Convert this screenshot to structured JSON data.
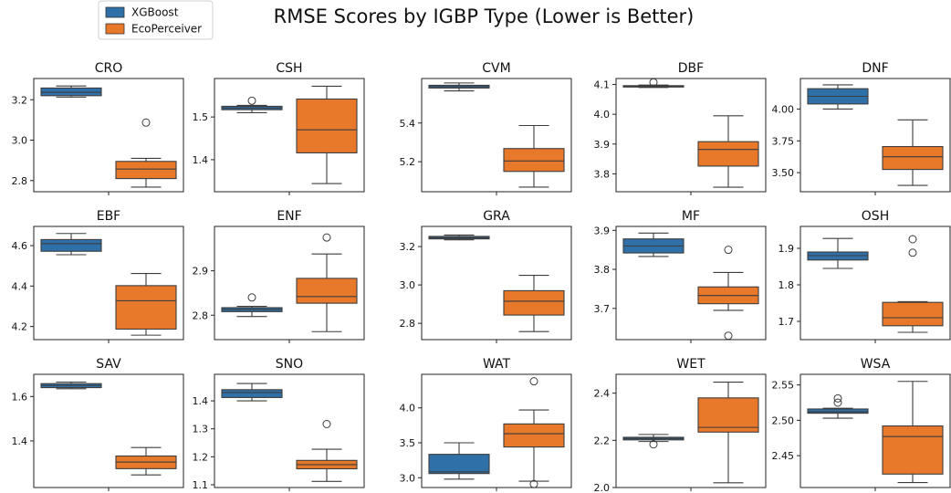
{
  "chart_data": {
    "type": "boxplot",
    "title": "RMSE Scores by IGBP Type (Lower is Better)",
    "legend": {
      "placement": "top-left",
      "entries": [
        {
          "name": "XGBoost",
          "color": "#2f70a8"
        },
        {
          "name": "EcoPerceiver",
          "color": "#e8782a"
        }
      ]
    },
    "grid": false,
    "panels": [
      {
        "label": "CRO",
        "ylim": [
          2.745,
          3.305
        ],
        "ticks": [
          "2.8",
          "3.0",
          "3.2"
        ],
        "tick_values": [
          2.8,
          3.0,
          3.2
        ],
        "boxes": [
          {
            "series": "XGBoost",
            "whisker_low": 3.213,
            "q1": 3.22,
            "median": 3.237,
            "q3": 3.258,
            "whisker_high": 3.268,
            "outliers": []
          },
          {
            "series": "EcoPerceiver",
            "whisker_low": 2.768,
            "q1": 2.81,
            "median": 2.857,
            "q3": 2.895,
            "whisker_high": 2.91,
            "outliers": [
              3.087
            ]
          }
        ]
      },
      {
        "label": "CSH",
        "ylim": [
          1.325,
          1.59
        ],
        "ticks": [
          "1.4",
          "1.5"
        ],
        "tick_values": [
          1.4,
          1.5
        ],
        "boxes": [
          {
            "series": "XGBoost",
            "whisker_low": 1.51,
            "q1": 1.517,
            "median": 1.521,
            "q3": 1.525,
            "whisker_high": 1.527,
            "outliers": [
              1.538
            ]
          },
          {
            "series": "EcoPerceiver",
            "whisker_low": 1.344,
            "q1": 1.416,
            "median": 1.47,
            "q3": 1.542,
            "whisker_high": 1.572,
            "outliers": []
          }
        ]
      },
      {
        "label": "CVM",
        "ylim": [
          5.045,
          5.63
        ],
        "ticks": [
          "5.2",
          "5.4"
        ],
        "tick_values": [
          5.2,
          5.4
        ],
        "boxes": [
          {
            "series": "XGBoost",
            "whisker_low": 5.566,
            "q1": 5.581,
            "median": 5.588,
            "q3": 5.595,
            "whisker_high": 5.607,
            "outliers": []
          },
          {
            "series": "EcoPerceiver",
            "whisker_low": 5.069,
            "q1": 5.15,
            "median": 5.204,
            "q3": 5.268,
            "whisker_high": 5.387,
            "outliers": []
          }
        ]
      },
      {
        "label": "DBF",
        "ylim": [
          3.74,
          4.12
        ],
        "ticks": [
          "3.8",
          "3.9",
          "4.0",
          "4.1"
        ],
        "tick_values": [
          3.8,
          3.9,
          4.0,
          4.1
        ],
        "boxes": [
          {
            "series": "XGBoost",
            "whisker_low": 4.09,
            "q1": 4.092,
            "median": 4.094,
            "q3": 4.096,
            "whisker_high": 4.098,
            "outliers": [
              4.107
            ]
          },
          {
            "series": "EcoPerceiver",
            "whisker_low": 3.755,
            "q1": 3.826,
            "median": 3.882,
            "q3": 3.908,
            "whisker_high": 3.995,
            "outliers": []
          }
        ]
      },
      {
        "label": "DNF",
        "ylim": [
          3.35,
          4.24
        ],
        "ticks": [
          "3.50",
          "3.75",
          "4.00"
        ],
        "tick_values": [
          3.5,
          3.75,
          4.0
        ],
        "boxes": [
          {
            "series": "XGBoost",
            "whisker_low": 4.0,
            "q1": 4.04,
            "median": 4.1,
            "q3": 4.16,
            "whisker_high": 4.19,
            "outliers": []
          },
          {
            "series": "EcoPerceiver",
            "whisker_low": 3.4,
            "q1": 3.525,
            "median": 3.625,
            "q3": 3.705,
            "whisker_high": 3.915,
            "outliers": []
          }
        ]
      },
      {
        "label": "EBF",
        "ylim": [
          4.135,
          4.695
        ],
        "ticks": [
          "4.2",
          "4.4",
          "4.6"
        ],
        "tick_values": [
          4.2,
          4.4,
          4.6
        ],
        "boxes": [
          {
            "series": "XGBoost",
            "whisker_low": 4.555,
            "q1": 4.572,
            "median": 4.61,
            "q3": 4.63,
            "whisker_high": 4.66,
            "outliers": []
          },
          {
            "series": "EcoPerceiver",
            "whisker_low": 4.157,
            "q1": 4.187,
            "median": 4.327,
            "q3": 4.402,
            "whisker_high": 4.462,
            "outliers": []
          }
        ]
      },
      {
        "label": "ENF",
        "ylim": [
          2.745,
          3.0
        ],
        "ticks": [
          "2.8",
          "2.9"
        ],
        "tick_values": [
          2.8,
          2.9
        ],
        "boxes": [
          {
            "series": "XGBoost",
            "whisker_low": 2.797,
            "q1": 2.808,
            "median": 2.813,
            "q3": 2.817,
            "whisker_high": 2.82,
            "outliers": [
              2.84
            ]
          },
          {
            "series": "EcoPerceiver",
            "whisker_low": 2.763,
            "q1": 2.827,
            "median": 2.842,
            "q3": 2.883,
            "whisker_high": 2.938,
            "outliers": [
              2.975
            ]
          }
        ]
      },
      {
        "label": "GRA",
        "ylim": [
          2.715,
          3.305
        ],
        "ticks": [
          "2.8",
          "3.0",
          "3.2"
        ],
        "tick_values": [
          2.8,
          3.0,
          3.2
        ],
        "boxes": [
          {
            "series": "XGBoost",
            "whisker_low": 3.235,
            "q1": 3.24,
            "median": 3.246,
            "q3": 3.253,
            "whisker_high": 3.26,
            "outliers": []
          },
          {
            "series": "EcoPerceiver",
            "whisker_low": 2.757,
            "q1": 2.843,
            "median": 2.915,
            "q3": 2.97,
            "whisker_high": 3.05,
            "outliers": []
          }
        ]
      },
      {
        "label": "MF",
        "ylim": [
          3.62,
          3.91
        ],
        "ticks": [
          "3.7",
          "3.8",
          "3.9"
        ],
        "tick_values": [
          3.7,
          3.8,
          3.9
        ],
        "boxes": [
          {
            "series": "XGBoost",
            "whisker_low": 3.833,
            "q1": 3.842,
            "median": 3.86,
            "q3": 3.878,
            "whisker_high": 3.893,
            "outliers": []
          },
          {
            "series": "EcoPerceiver",
            "whisker_low": 3.695,
            "q1": 3.712,
            "median": 3.733,
            "q3": 3.755,
            "whisker_high": 3.792,
            "outliers": [
              3.85,
              3.63
            ]
          }
        ]
      },
      {
        "label": "OSH",
        "ylim": [
          1.65,
          1.96
        ],
        "ticks": [
          "1.7",
          "1.8",
          "1.9"
        ],
        "tick_values": [
          1.7,
          1.8,
          1.9
        ],
        "boxes": [
          {
            "series": "XGBoost",
            "whisker_low": 1.845,
            "q1": 1.868,
            "median": 1.88,
            "q3": 1.89,
            "whisker_high": 1.927,
            "outliers": []
          },
          {
            "series": "EcoPerceiver",
            "whisker_low": 1.67,
            "q1": 1.688,
            "median": 1.71,
            "q3": 1.752,
            "whisker_high": 1.754,
            "outliers": [
              1.925,
              1.888
            ]
          }
        ]
      },
      {
        "label": "SAV",
        "ylim": [
          1.19,
          1.7
        ],
        "ticks": [
          "1.4",
          "1.6"
        ],
        "tick_values": [
          1.4,
          1.6
        ],
        "boxes": [
          {
            "series": "XGBoost",
            "whisker_low": 1.635,
            "q1": 1.64,
            "median": 1.65,
            "q3": 1.658,
            "whisker_high": 1.665,
            "outliers": []
          },
          {
            "series": "EcoPerceiver",
            "whisker_low": 1.247,
            "q1": 1.275,
            "median": 1.305,
            "q3": 1.332,
            "whisker_high": 1.37,
            "outliers": []
          }
        ]
      },
      {
        "label": "SNO",
        "ylim": [
          1.09,
          1.495
        ],
        "ticks": [
          "1.1",
          "1.2",
          "1.3",
          "1.4"
        ],
        "tick_values": [
          1.1,
          1.2,
          1.3,
          1.4
        ],
        "boxes": [
          {
            "series": "XGBoost",
            "whisker_low": 1.4,
            "q1": 1.412,
            "median": 1.43,
            "q3": 1.44,
            "whisker_high": 1.462,
            "outliers": []
          },
          {
            "series": "EcoPerceiver",
            "whisker_low": 1.112,
            "q1": 1.157,
            "median": 1.172,
            "q3": 1.187,
            "whisker_high": 1.227,
            "outliers": [
              1.317
            ]
          }
        ]
      },
      {
        "label": "WAT",
        "ylim": [
          2.86,
          4.48
        ],
        "ticks": [
          "3.0",
          "3.5",
          "4.0"
        ],
        "tick_values": [
          3.0,
          3.5,
          4.0
        ],
        "boxes": [
          {
            "series": "XGBoost",
            "whisker_low": 2.98,
            "q1": 3.06,
            "median": 3.085,
            "q3": 3.335,
            "whisker_high": 3.5,
            "outliers": []
          },
          {
            "series": "EcoPerceiver",
            "whisker_low": 2.95,
            "q1": 3.44,
            "median": 3.63,
            "q3": 3.77,
            "whisker_high": 3.97,
            "outliers": [
              4.38,
              2.91
            ]
          }
        ]
      },
      {
        "label": "WET",
        "ylim": [
          2.0,
          2.48
        ],
        "ticks": [
          "2.0",
          "2.2",
          "2.4"
        ],
        "tick_values": [
          2.0,
          2.2,
          2.4
        ],
        "boxes": [
          {
            "series": "XGBoost",
            "whisker_low": 2.195,
            "q1": 2.202,
            "median": 2.208,
            "q3": 2.213,
            "whisker_high": 2.225,
            "outliers": [
              2.183
            ]
          },
          {
            "series": "EcoPerceiver",
            "whisker_low": 2.02,
            "q1": 2.235,
            "median": 2.255,
            "q3": 2.38,
            "whisker_high": 2.447,
            "outliers": []
          }
        ]
      },
      {
        "label": "WSA",
        "ylim": [
          2.405,
          2.565
        ],
        "ticks": [
          "2.45",
          "2.50",
          "2.55"
        ],
        "tick_values": [
          2.45,
          2.5,
          2.55
        ],
        "boxes": [
          {
            "series": "XGBoost",
            "whisker_low": 2.503,
            "q1": 2.51,
            "median": 2.512,
            "q3": 2.516,
            "whisker_high": 2.517,
            "outliers": [
              2.531,
              2.525
            ]
          },
          {
            "series": "EcoPerceiver",
            "whisker_low": 2.412,
            "q1": 2.424,
            "median": 2.477,
            "q3": 2.492,
            "whisker_high": 2.555,
            "outliers": []
          }
        ]
      }
    ]
  }
}
